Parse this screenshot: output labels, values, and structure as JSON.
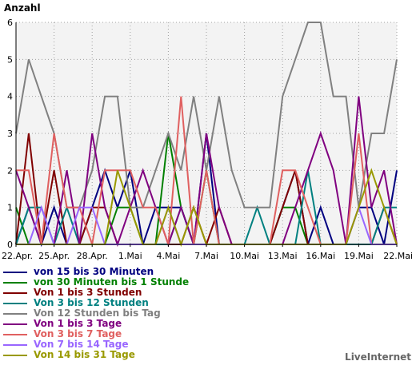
{
  "chart_data": {
    "type": "line",
    "title": "",
    "ylabel": "Anzahl",
    "xlabel": "",
    "ylim": [
      0,
      6
    ],
    "yticks": [
      0,
      1,
      2,
      3,
      4,
      5,
      6
    ],
    "grid": true,
    "background": "#f3f3f3",
    "categories": [
      "22.Apr.",
      "23.Apr.",
      "24.Apr.",
      "25.Apr.",
      "26.Apr.",
      "27.Apr.",
      "28.Apr.",
      "29.Apr.",
      "30.Apr.",
      "1.Mai",
      "2.Mai",
      "3.Mai",
      "4.Mai",
      "5.Mai",
      "6.Mai",
      "7.Mai",
      "8.Mai",
      "9.Mai",
      "10.Mai",
      "11.Mai",
      "12.Mai",
      "13.Mai",
      "14.Mai",
      "15.Mai",
      "16.Mai",
      "17.Mai",
      "18.Mai",
      "19.Mai",
      "20.Mai",
      "21.Mai",
      "22.Mai"
    ],
    "xtick_labels": [
      "22.Apr.",
      "25.Apr.",
      "28.Apr.",
      "1.Mai",
      "4.Mai",
      "7.Mai",
      "10.Mai",
      "13.Mai",
      "16.Mai",
      "19.Mai",
      "22.Mai"
    ],
    "xtick_indices": [
      0,
      3,
      6,
      9,
      12,
      15,
      18,
      21,
      24,
      27,
      30
    ],
    "legend_position": "bottom",
    "series": [
      {
        "name": "von 15 bis 30 Minuten",
        "color": "#000080",
        "values": [
          0,
          1,
          0,
          1,
          0,
          0,
          1,
          2,
          1,
          2,
          0,
          1,
          1,
          1,
          0,
          3,
          0,
          0,
          0,
          0,
          0,
          1,
          2,
          0,
          1,
          0,
          0,
          1,
          1,
          0,
          2
        ]
      },
      {
        "name": "von 30 Minuten bis 1 Stunde",
        "color": "#008000",
        "values": [
          1,
          0,
          0,
          0,
          0,
          0,
          0,
          0,
          1,
          1,
          0,
          0,
          3,
          1,
          0,
          2,
          0,
          0,
          0,
          0,
          0,
          1,
          1,
          0,
          0,
          0,
          0,
          0,
          0,
          0,
          0
        ]
      },
      {
        "name": "Von 1 bis 3 Stunden",
        "color": "#800000",
        "values": [
          0,
          3,
          0,
          2,
          0,
          0,
          1,
          1,
          0,
          0,
          0,
          0,
          0,
          0,
          1,
          0,
          1,
          0,
          0,
          0,
          0,
          1,
          2,
          0,
          0,
          0,
          0,
          0,
          0,
          1,
          0
        ]
      },
      {
        "name": "Von 3 bis 12 Stunden",
        "color": "#008080",
        "values": [
          0,
          1,
          1,
          0,
          1,
          0,
          0,
          0,
          0,
          0,
          0,
          0,
          0,
          1,
          0,
          0,
          0,
          0,
          0,
          1,
          0,
          0,
          0,
          2,
          0,
          0,
          0,
          0,
          0,
          1,
          1
        ]
      },
      {
        "name": "Von 12 Stunden bis Tag",
        "color": "#808080",
        "values": [
          3,
          5,
          4,
          3,
          1,
          1,
          2,
          4,
          4,
          1,
          1,
          2,
          3,
          2,
          4,
          2,
          4,
          2,
          1,
          1,
          1,
          4,
          5,
          6,
          6,
          4,
          4,
          1,
          3,
          3,
          5
        ]
      },
      {
        "name": "Von 1 bis 3 Tage",
        "color": "#800080",
        "values": [
          2,
          1,
          0,
          0,
          2,
          0,
          3,
          1,
          0,
          1,
          2,
          1,
          0,
          1,
          0,
          3,
          1,
          0,
          0,
          0,
          0,
          0,
          1,
          2,
          3,
          2,
          0,
          4,
          1,
          2,
          0
        ]
      },
      {
        "name": "Von 3 bis 7 Tage",
        "color": "#e06060",
        "values": [
          2,
          2,
          0,
          3,
          1,
          1,
          0,
          2,
          2,
          2,
          1,
          1,
          0,
          4,
          0,
          2,
          0,
          0,
          0,
          0,
          0,
          2,
          2,
          1,
          0,
          0,
          0,
          3,
          0,
          0,
          0
        ]
      },
      {
        "name": "Von 7 bis 14 Tage",
        "color": "#9966ff",
        "values": [
          0,
          0,
          1,
          0,
          0,
          1,
          1,
          0,
          0,
          0,
          0,
          0,
          1,
          0,
          0,
          0,
          0,
          0,
          0,
          0,
          0,
          0,
          0,
          0,
          0,
          0,
          0,
          1,
          0,
          0,
          0
        ]
      },
      {
        "name": "Von 14 bis 31 Tage",
        "color": "#999900",
        "values": [
          0,
          0,
          0,
          0,
          0,
          0,
          0,
          0,
          2,
          1,
          0,
          0,
          1,
          0,
          1,
          0,
          0,
          0,
          0,
          0,
          0,
          0,
          0,
          0,
          0,
          0,
          0,
          1,
          2,
          1,
          0
        ]
      }
    ]
  },
  "brand": "LiveInternet"
}
